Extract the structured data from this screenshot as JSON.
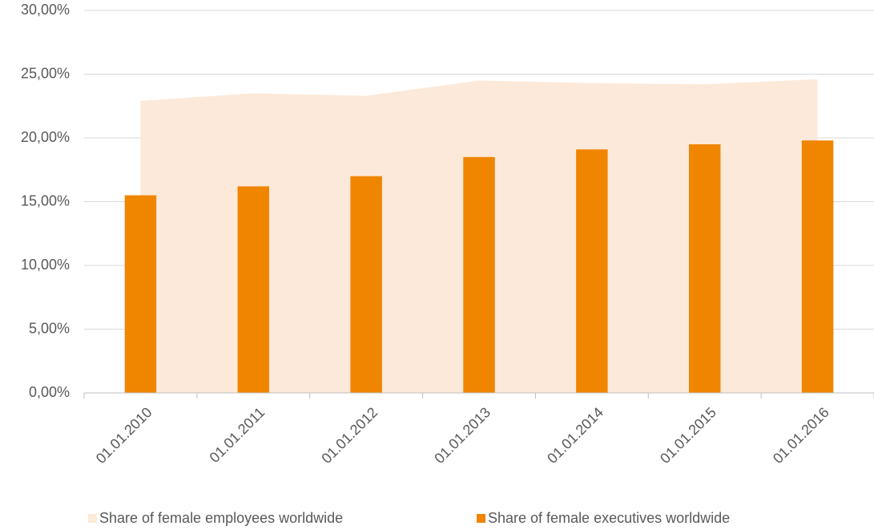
{
  "chart_data": {
    "type": "bar",
    "categories": [
      "01.01.2010",
      "01.01.2011",
      "01.01.2012",
      "01.01.2013",
      "01.01.2014",
      "01.01.2015",
      "01.01.2016"
    ],
    "series": [
      {
        "name": "Share of female employees worldwide",
        "type": "area",
        "color": "#fde9d9",
        "values": [
          22.9,
          23.5,
          23.3,
          24.5,
          24.3,
          24.2,
          24.6
        ]
      },
      {
        "name": "Share of female executives worldwide",
        "type": "bar",
        "color": "#f08500",
        "values": [
          15.5,
          16.2,
          17.0,
          18.5,
          19.1,
          19.5,
          19.8
        ]
      }
    ],
    "ylim": [
      0,
      30
    ],
    "yticks": [
      {
        "value": 0,
        "label": "0,00%"
      },
      {
        "value": 5,
        "label": "5,00%"
      },
      {
        "value": 10,
        "label": "10,00%"
      },
      {
        "value": 15,
        "label": "15,00%"
      },
      {
        "value": 20,
        "label": "20,00%"
      },
      {
        "value": 25,
        "label": "25,00%"
      },
      {
        "value": 30,
        "label": "30,00%"
      }
    ],
    "grid": true,
    "legend": "bottom"
  }
}
